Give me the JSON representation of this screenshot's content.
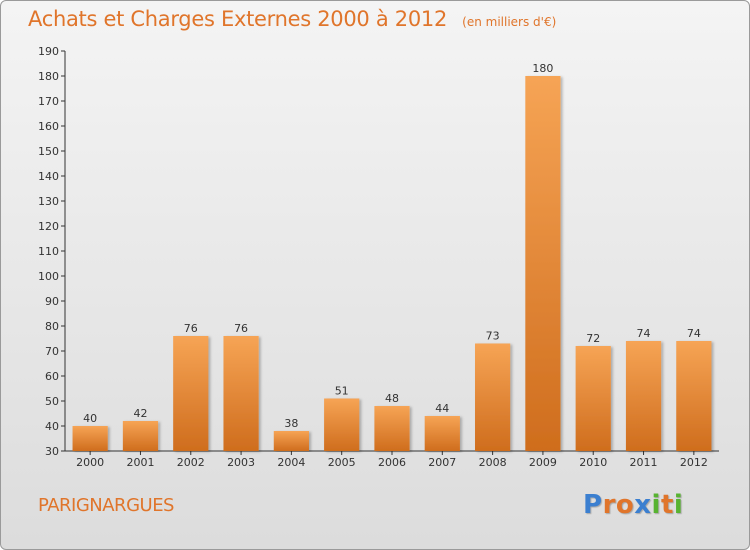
{
  "title": "Achats et Charges Externes 2000 à 2012",
  "subtitle": "(en milliers d'€)",
  "commune": "PARIGNARGUES",
  "logo": {
    "text": "Proxiti",
    "colors": [
      "#3b7fd0",
      "#e0752b",
      "#e0752b",
      "#3b7fd0",
      "#58b331",
      "#e0752b",
      "#58b331"
    ]
  },
  "chart_data": {
    "type": "bar",
    "categories": [
      "2000",
      "2001",
      "2002",
      "2003",
      "2004",
      "2005",
      "2006",
      "2007",
      "2008",
      "2009",
      "2010",
      "2011",
      "2012"
    ],
    "values": [
      40,
      42,
      76,
      76,
      38,
      51,
      48,
      44,
      73,
      180,
      72,
      74,
      74
    ],
    "ylim": [
      30,
      190
    ],
    "yticks": [
      30,
      40,
      50,
      60,
      70,
      80,
      90,
      100,
      110,
      120,
      130,
      140,
      150,
      160,
      170,
      180,
      190
    ],
    "grid": false,
    "bar_color": "#e8893a"
  }
}
